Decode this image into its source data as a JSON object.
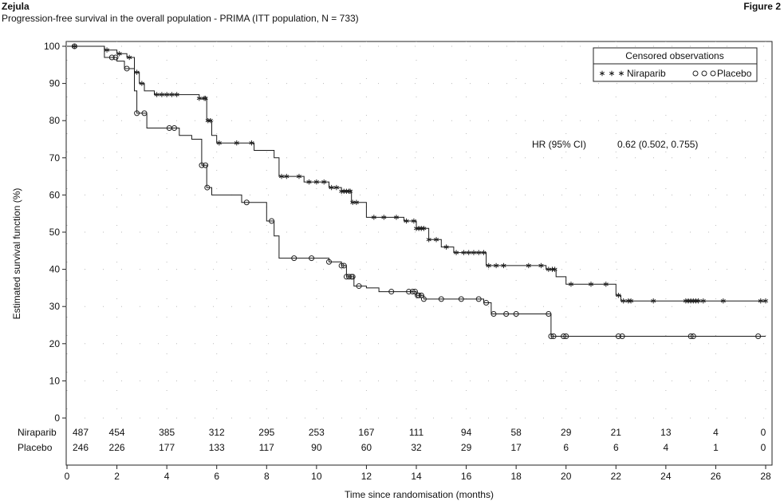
{
  "header": {
    "brand": "Zejula",
    "figure_label": "Figure 2",
    "subtitle": "Progression-free survival in the overall population - PRIMA (ITT population, N = 733)"
  },
  "chart_data": {
    "type": "line",
    "title": "Progression-free survival in the overall population - PRIMA (ITT population, N = 733)",
    "xlabel": "Time since randomisation (months)",
    "ylabel": "Estimated survival function (%)",
    "xlim": [
      0,
      28
    ],
    "ylim": [
      0,
      100
    ],
    "x_ticks": [
      0,
      2,
      4,
      6,
      8,
      10,
      12,
      14,
      16,
      18,
      20,
      22,
      24,
      26,
      28
    ],
    "y_ticks": [
      0,
      10,
      20,
      30,
      40,
      50,
      60,
      70,
      80,
      90,
      100
    ],
    "grid": "dotted",
    "step": true,
    "legend": {
      "title": "Censored observations",
      "placement": "top-right",
      "entries": [
        {
          "label": "Niraparib",
          "marker": "* * *"
        },
        {
          "label": "Placebo",
          "marker": "○ ○ ○"
        }
      ]
    },
    "annotation": {
      "label": "HR (95% CI)",
      "value": "0.62 (0.502, 0.755)"
    },
    "series": [
      {
        "name": "Niraparib",
        "marker": "asterisk",
        "x": [
          0,
          1.5,
          2.0,
          2.4,
          2.7,
          2.9,
          3.1,
          3.5,
          4.5,
          5.3,
          5.6,
          5.8,
          6.0,
          7.5,
          8.3,
          8.5,
          9.5,
          10.5,
          11.0,
          11.4,
          12.0,
          13.5,
          14.0,
          14.5,
          15.0,
          15.5,
          16.8,
          19.2,
          19.6,
          20.0,
          22.0,
          22.2,
          28.0
        ],
        "y": [
          100,
          99,
          98,
          97,
          93,
          90,
          88,
          87,
          87,
          86,
          80,
          76,
          74,
          72,
          70,
          65,
          63.5,
          62,
          61,
          58,
          54,
          53,
          51,
          48,
          46,
          44.5,
          41,
          40,
          38,
          36,
          33,
          31.5,
          31.5
        ]
      },
      {
        "name": "Placebo",
        "marker": "circle",
        "x": [
          0,
          1.5,
          2.0,
          2.3,
          2.7,
          2.8,
          3.2,
          4.0,
          4.5,
          5.0,
          5.4,
          5.6,
          5.8,
          7.0,
          8.0,
          8.3,
          8.5,
          10.5,
          11.0,
          11.2,
          11.5,
          12.0,
          12.5,
          13.5,
          14.0,
          14.3,
          16.7,
          17.0,
          19.4,
          28.0
        ],
        "y": [
          100,
          97,
          96,
          94,
          88,
          82,
          78,
          78,
          76,
          75,
          68,
          62,
          60,
          58,
          53,
          49,
          43,
          42,
          41,
          38,
          35.5,
          35,
          34,
          34,
          33,
          32,
          31,
          28,
          22,
          22
        ]
      }
    ],
    "censor_marks": {
      "Niraparib": [
        0.3,
        1.6,
        2.1,
        2.5,
        2.8,
        3.0,
        3.6,
        3.8,
        4.0,
        4.2,
        4.4,
        5.3,
        5.5,
        5.55,
        5.65,
        5.75,
        6.1,
        6.8,
        7.4,
        8.6,
        8.8,
        9.3,
        9.7,
        10.0,
        10.3,
        10.6,
        10.8,
        11.0,
        11.1,
        11.2,
        11.3,
        11.35,
        11.45,
        11.6,
        12.3,
        12.7,
        13.2,
        13.6,
        13.9,
        14.0,
        14.1,
        14.2,
        14.3,
        14.5,
        14.8,
        15.2,
        15.6,
        15.9,
        16.1,
        16.3,
        16.5,
        16.7,
        16.9,
        17.2,
        17.5,
        18.5,
        19.0,
        19.3,
        19.45,
        19.55,
        20.2,
        21.0,
        21.6,
        22.1,
        22.3,
        22.5,
        22.6,
        23.5,
        24.8,
        24.9,
        25.0,
        25.1,
        25.2,
        25.3,
        25.5,
        26.3,
        27.8,
        28.0
      ],
      "Placebo": [
        0.3,
        1.8,
        1.95,
        2.4,
        2.8,
        3.1,
        4.1,
        4.3,
        5.4,
        5.55,
        5.62,
        7.2,
        8.2,
        9.1,
        9.8,
        10.5,
        11.0,
        11.1,
        11.2,
        11.3,
        11.4,
        11.45,
        11.7,
        13.0,
        13.7,
        13.85,
        13.95,
        14.05,
        14.1,
        14.2,
        14.3,
        15.0,
        15.8,
        16.5,
        16.8,
        17.1,
        17.6,
        18.0,
        19.3,
        19.4,
        19.5,
        19.9,
        20.0,
        22.1,
        22.25,
        25.0,
        25.1,
        27.7
      ]
    },
    "at_risk": {
      "times": [
        0,
        2,
        4,
        6,
        8,
        10,
        12,
        14,
        16,
        18,
        20,
        22,
        24,
        26,
        28
      ],
      "rows": [
        {
          "label": "Niraparib",
          "values": [
            "487",
            "454",
            "385",
            "312",
            "295",
            "253",
            "167",
            "111",
            "94",
            "58",
            "29",
            "21",
            "13",
            "4",
            "0"
          ]
        },
        {
          "label": "Placebo",
          "values": [
            "246",
            "226",
            "177",
            "133",
            "117",
            "90",
            "60",
            "32",
            "29",
            "17",
            "6",
            "6",
            "4",
            "1",
            "0"
          ]
        }
      ]
    }
  }
}
